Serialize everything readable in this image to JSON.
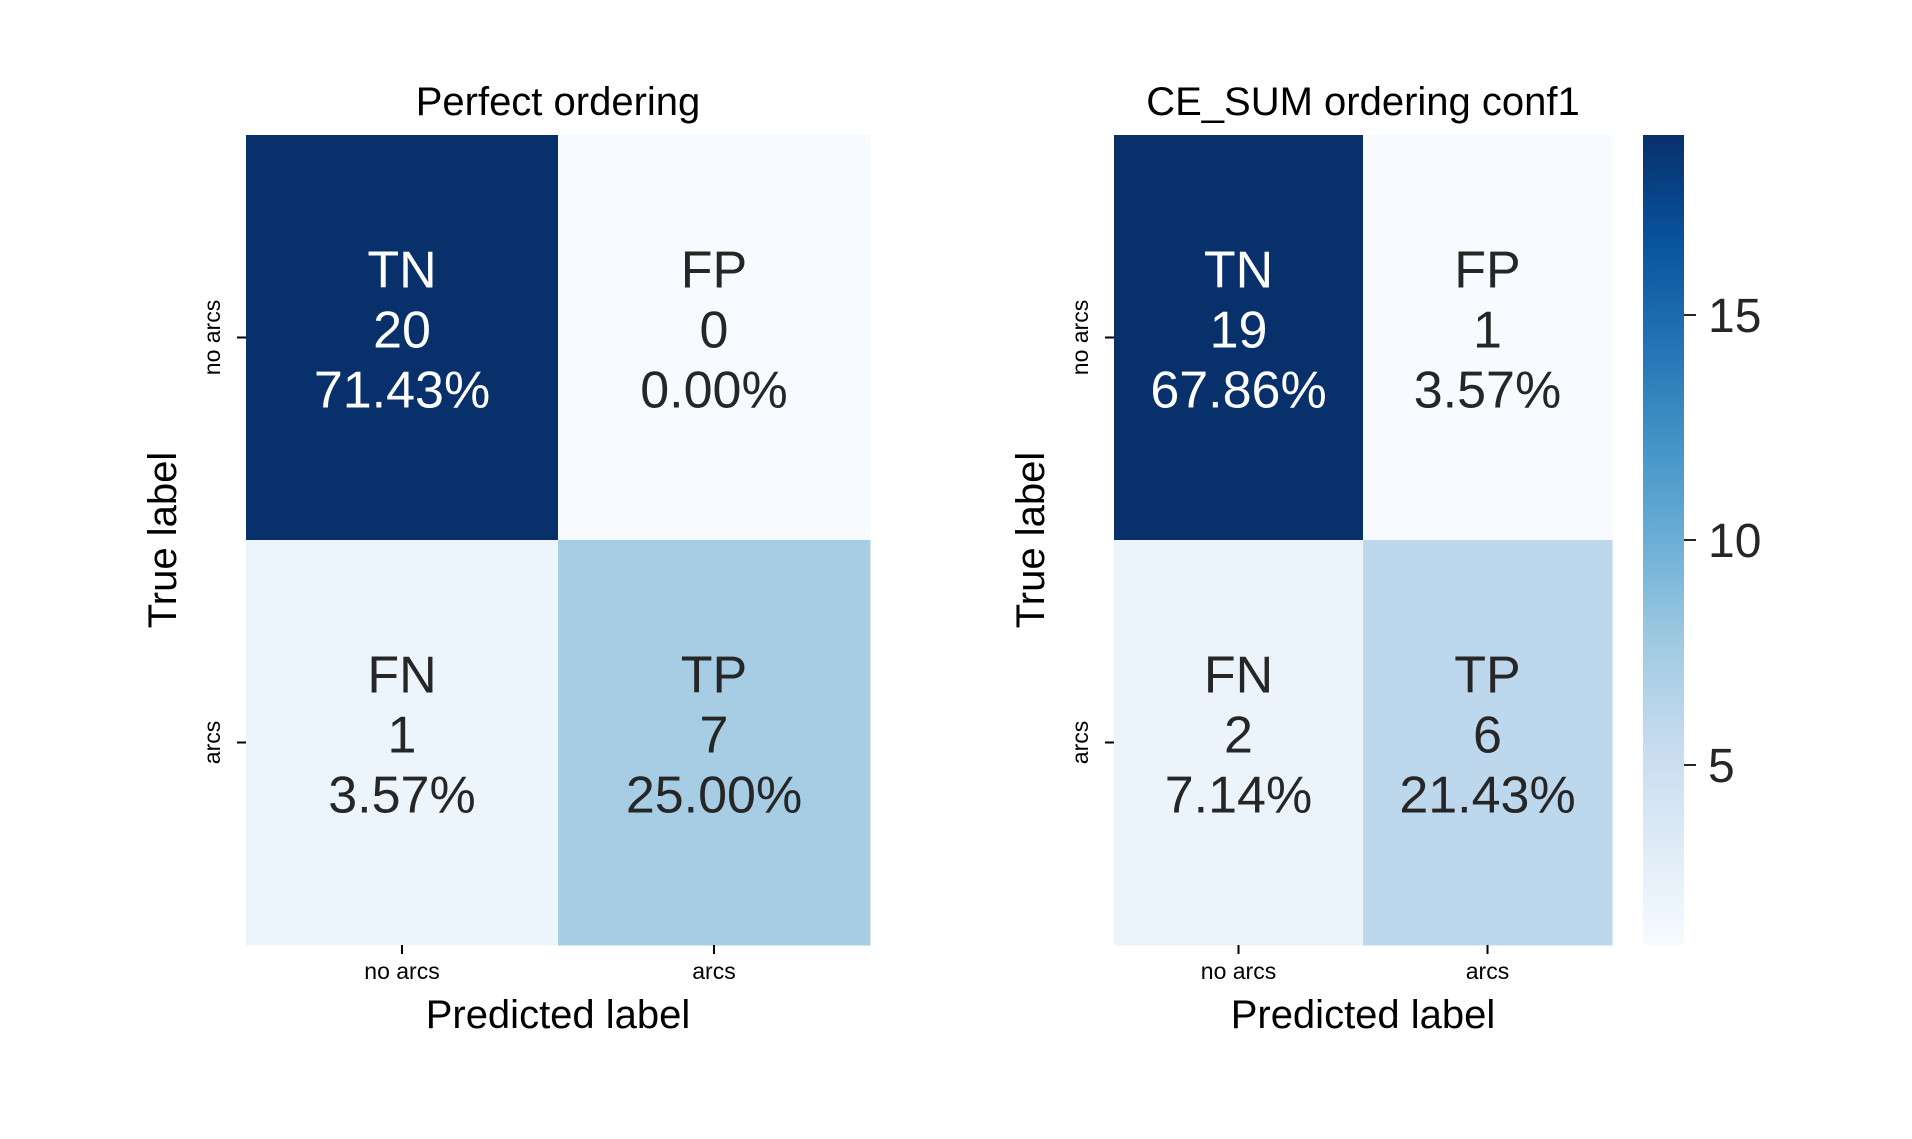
{
  "chart_data": [
    {
      "type": "heatmap",
      "title": "Perfect ordering",
      "xlabel": "Predicted label",
      "ylabel": "True label",
      "x_categories": [
        "no arcs",
        "arcs"
      ],
      "y_categories": [
        "no arcs",
        "arcs"
      ],
      "cells": [
        [
          {
            "label": "TN",
            "value": 20,
            "percent": "71.43%"
          },
          {
            "label": "FP",
            "value": 0,
            "percent": "0.00%"
          }
        ],
        [
          {
            "label": "FN",
            "value": 1,
            "percent": "3.57%"
          },
          {
            "label": "TP",
            "value": 7,
            "percent": "25.00%"
          }
        ]
      ],
      "colormap": "Blues",
      "color_range": [
        0,
        20
      ]
    },
    {
      "type": "heatmap",
      "title": "CE_SUM ordering conf1",
      "xlabel": "Predicted label",
      "ylabel": "True label",
      "x_categories": [
        "no arcs",
        "arcs"
      ],
      "y_categories": [
        "no arcs",
        "arcs"
      ],
      "cells": [
        [
          {
            "label": "TN",
            "value": 19,
            "percent": "67.86%"
          },
          {
            "label": "FP",
            "value": 1,
            "percent": "3.57%"
          }
        ],
        [
          {
            "label": "FN",
            "value": 2,
            "percent": "7.14%"
          },
          {
            "label": "TP",
            "value": 6,
            "percent": "21.43%"
          }
        ]
      ],
      "colormap": "Blues",
      "color_range": [
        1,
        19
      ],
      "colorbar": {
        "ticks": [
          5,
          10,
          15
        ]
      }
    }
  ]
}
